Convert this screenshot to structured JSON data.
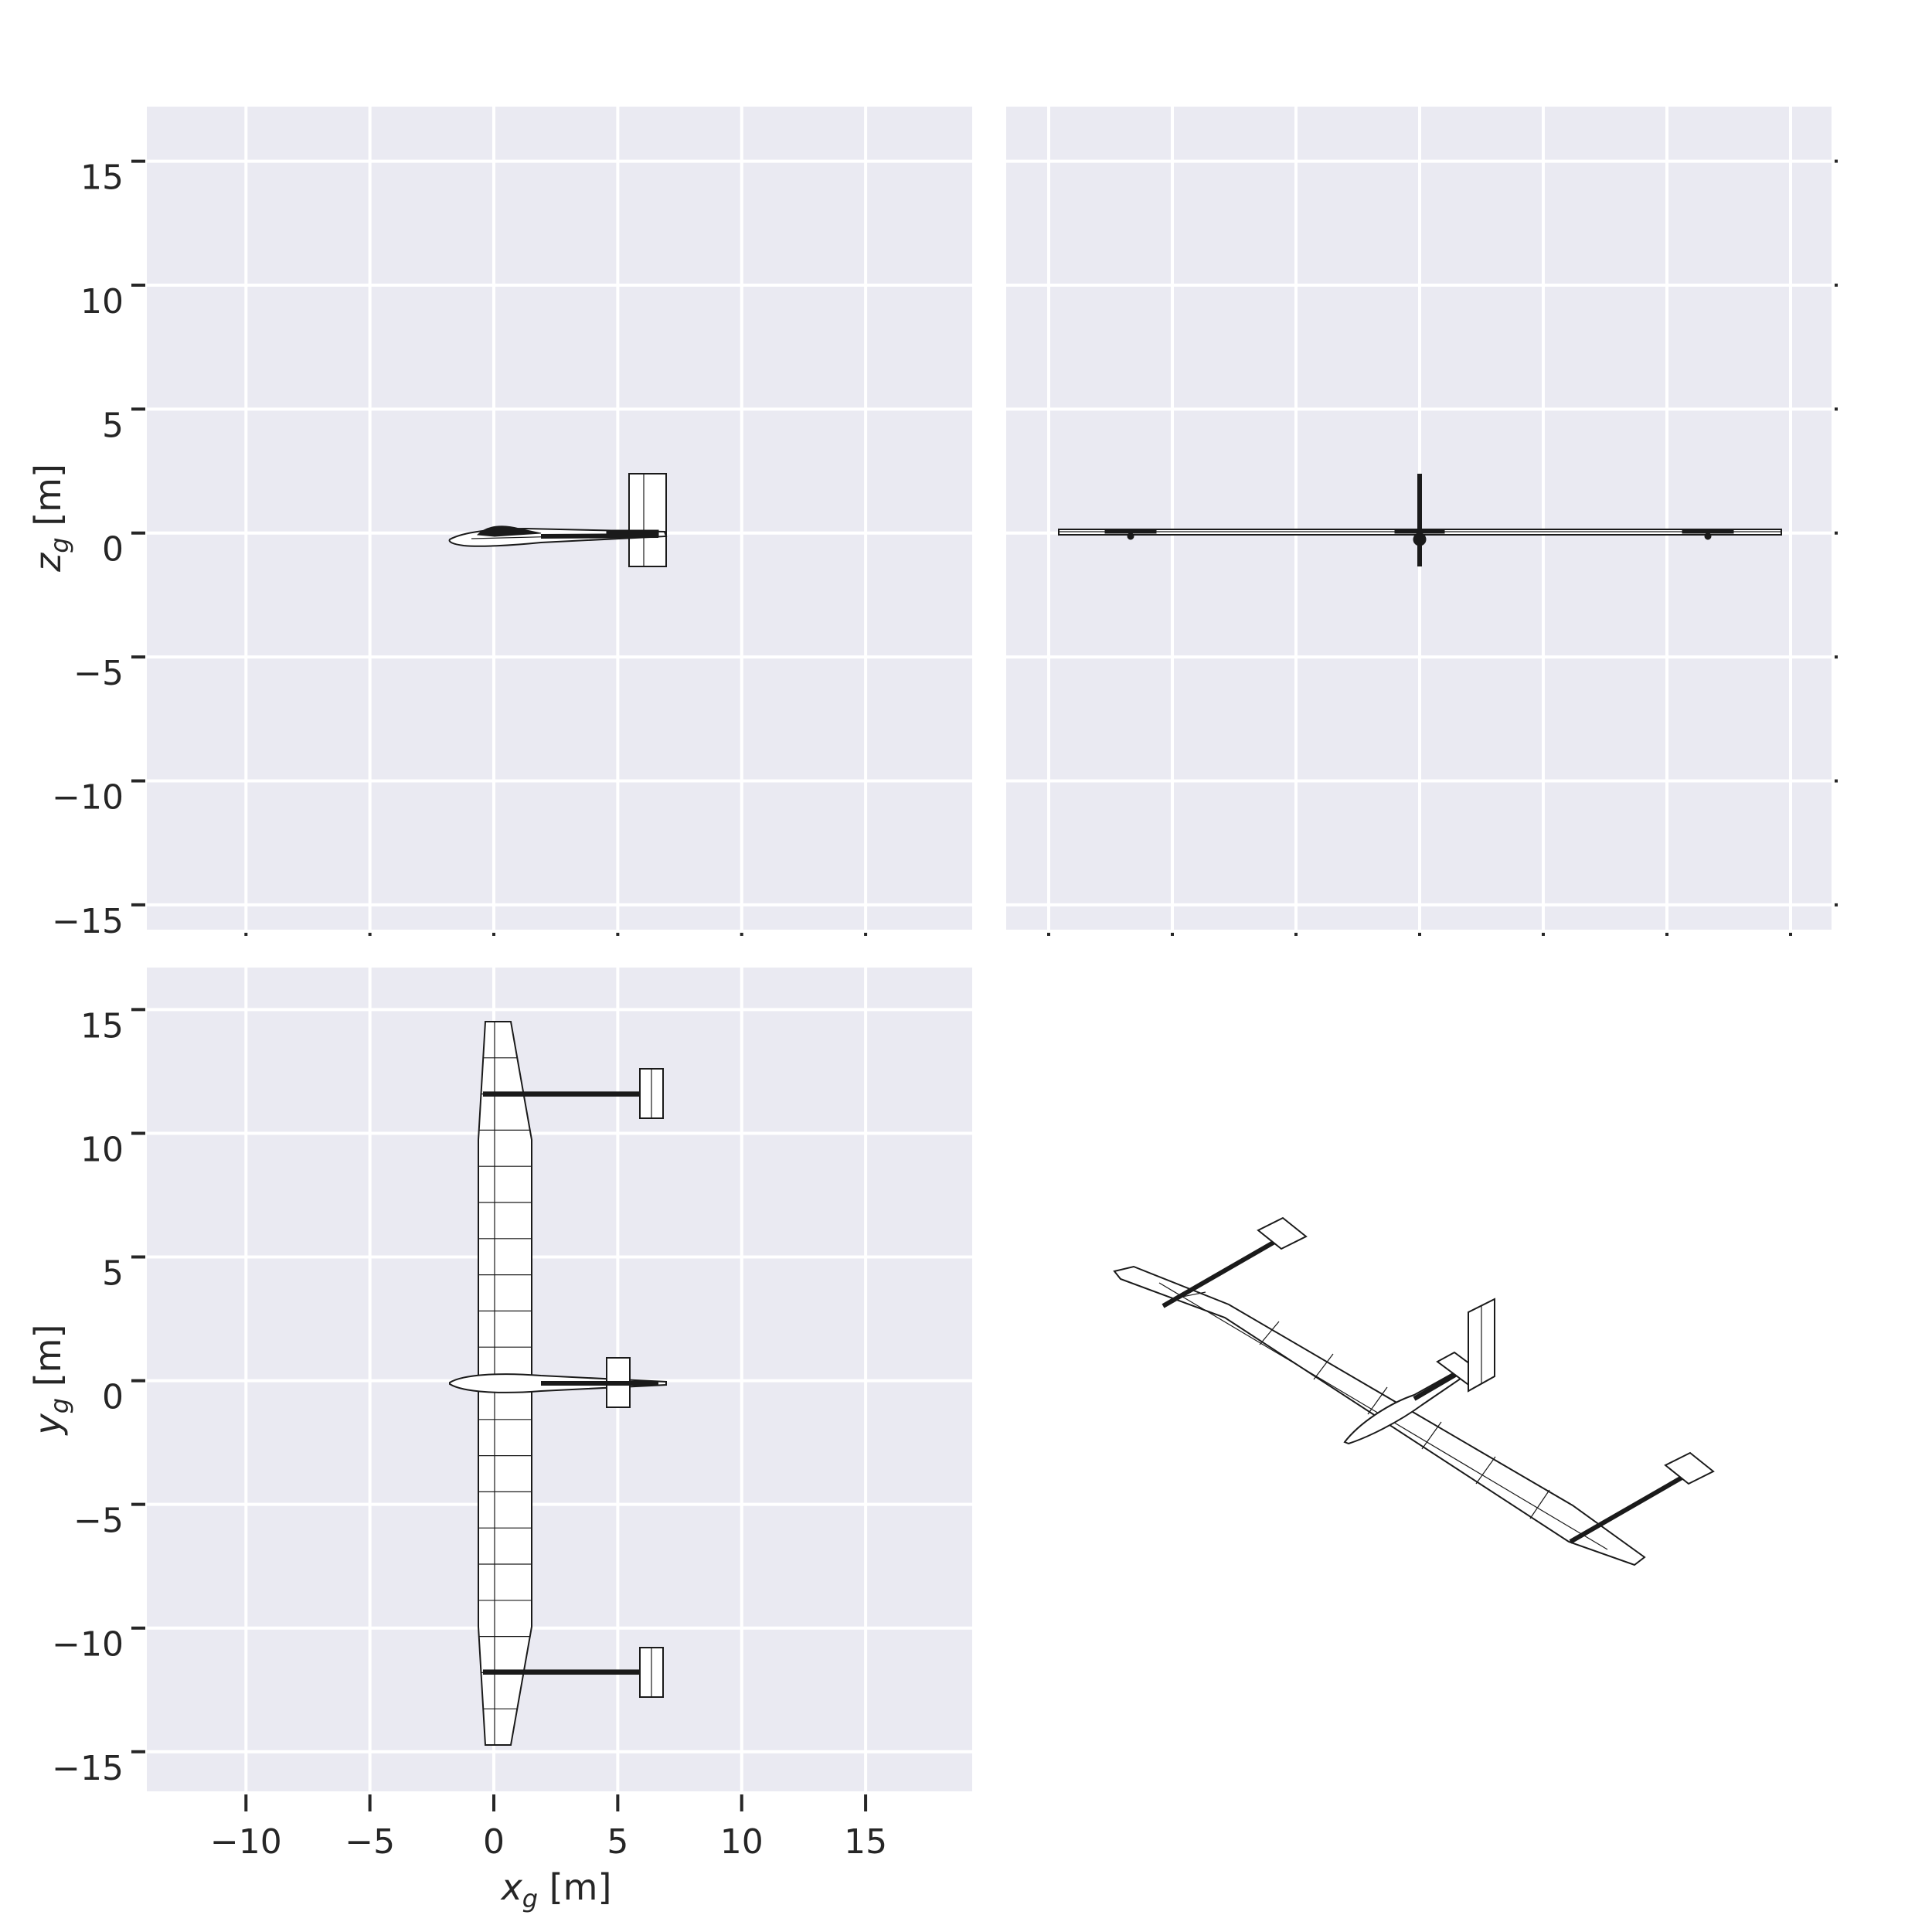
{
  "figure": {
    "views": [
      "side-view",
      "front-view",
      "top-view",
      "isometric-view"
    ],
    "x_axis": {
      "label_main": "x",
      "label_sub": "g",
      "label_unit": " [m]",
      "ticks": [
        -10,
        -5,
        0,
        5,
        10,
        15
      ],
      "tick_text": [
        "−10",
        "−5",
        "0",
        "5",
        "10",
        "15"
      ],
      "range": [
        -14,
        19.3
      ]
    },
    "z_axis": {
      "label_main": "z",
      "label_sub": "g",
      "label_unit": " [m]",
      "ticks": [
        -15,
        -10,
        -5,
        0,
        5,
        10,
        15
      ],
      "tick_text": [
        "−15",
        "−10",
        "−5",
        "0",
        "5",
        "10",
        "15"
      ],
      "range": [
        -16,
        17.2
      ]
    },
    "y_axis": {
      "label_main": "y",
      "label_sub": "g",
      "label_unit": " [m]",
      "ticks": [
        -15,
        -10,
        -5,
        0,
        5,
        10,
        15
      ],
      "tick_text": [
        "−15",
        "−10",
        "−5",
        "0",
        "5",
        "10",
        "15"
      ],
      "range": [
        -16.6,
        16.7
      ]
    },
    "front_x_ticks": [
      -15,
      -10,
      -5,
      0,
      5,
      10,
      15
    ],
    "grid": true,
    "colors": {
      "panel": "#eaeaf2",
      "grid": "#ffffff",
      "ink": "#1a1a1a",
      "text": "#262626"
    }
  }
}
